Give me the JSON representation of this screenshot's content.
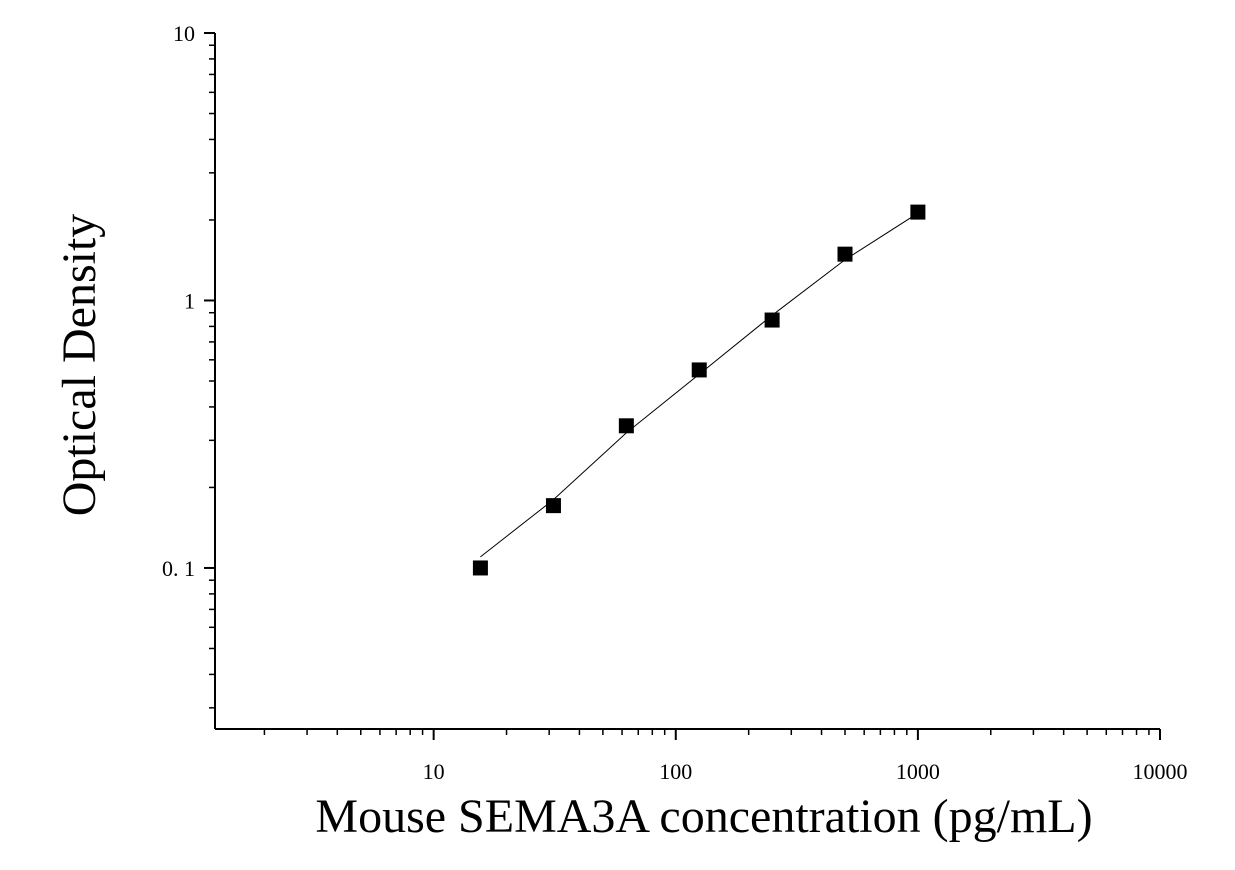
{
  "chart_data": {
    "type": "scatter",
    "x_label": "Mouse SEMA3A concentration (pg/mL)",
    "y_label": "Optical Density",
    "x": [
      15.6,
      31.25,
      62.5,
      125,
      250,
      500,
      1000
    ],
    "values": [
      0.1,
      0.171,
      0.34,
      0.55,
      0.845,
      1.49,
      2.14
    ],
    "color": "#000000",
    "curve": {
      "x": [
        15.6,
        31.25,
        62.5,
        125,
        250,
        500,
        1000
      ],
      "values": [
        0.11,
        0.18,
        0.32,
        0.53,
        0.88,
        1.42,
        2.12
      ],
      "color": "#000000"
    },
    "xlog": true,
    "ylog": true,
    "xlim": [
      1.25,
      10000
    ],
    "ylim": [
      0.025,
      10
    ],
    "xticks": [
      10,
      100,
      1000,
      10000
    ],
    "yticks": [
      {
        "value": 0.1,
        "label": "0. 1"
      },
      1,
      10
    ]
  }
}
